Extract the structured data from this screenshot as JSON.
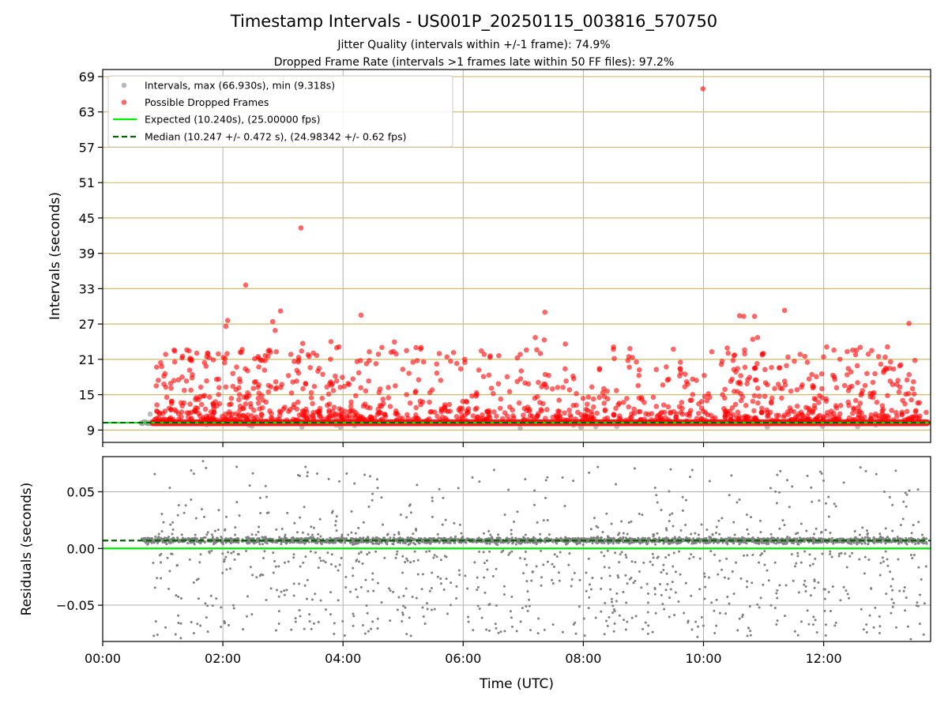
{
  "figure": {
    "title": "Timestamp Intervals - US001P_20250115_003816_570750",
    "subtitle_1": "Jitter Quality (intervals within +/-1 frame): 74.9%",
    "subtitle_2": "Dropped Frame Rate (intervals >1 frames late within 50 FF files): 97.2%"
  },
  "chart_data": [
    {
      "type": "scatter",
      "ylabel": "Intervals (seconds)",
      "xlabel": "",
      "x_unit": "hours (UTC)",
      "xlim": [
        0.0,
        13.78
      ],
      "ylim": [
        6.9,
        70.2
      ],
      "yticks": [
        9,
        15,
        21,
        27,
        33,
        39,
        45,
        51,
        57,
        63,
        69
      ],
      "ytick_labels": [
        "9",
        "15",
        "21",
        "27",
        "33",
        "39",
        "45",
        "51",
        "57",
        "63",
        "69"
      ],
      "xticks": [
        0,
        2,
        4,
        6,
        8,
        10,
        12
      ],
      "horizontal_grid": "y ticks (gold)",
      "vertical_grid": true,
      "legend_position": "top-left",
      "legend": [
        {
          "label": "Intervals, max (66.930s), min (9.318s)",
          "marker": "circle",
          "color": "#a0a0a0"
        },
        {
          "label": "Possible Dropped Frames",
          "marker": "circle",
          "color": "#ff0000"
        },
        {
          "label": "Expected (10.240s), (25.00000 fps)",
          "line": "solid",
          "color": "#00ee00"
        },
        {
          "label": "Median (10.247 +/- 0.472 s), (24.98342 +/- 0.62 fps)",
          "line": "dashed",
          "color": "#006400"
        }
      ],
      "expected_interval": 10.24,
      "median_interval": 10.247,
      "interval_max": 66.93,
      "interval_min": 9.318,
      "data_start_hour": 0.64,
      "data_end_hour": 13.72,
      "baseline_value": 10.24,
      "dropped_frames_sample": [
        {
          "x": 9.99,
          "y": 66.93
        },
        {
          "x": 3.3,
          "y": 43.3
        },
        {
          "x": 2.38,
          "y": 33.6
        },
        {
          "x": 2.96,
          "y": 29.2
        },
        {
          "x": 7.36,
          "y": 29.0
        },
        {
          "x": 11.35,
          "y": 29.3
        },
        {
          "x": 4.3,
          "y": 28.5
        },
        {
          "x": 10.6,
          "y": 28.4
        },
        {
          "x": 10.67,
          "y": 28.3
        },
        {
          "x": 10.85,
          "y": 28.3
        },
        {
          "x": 2.08,
          "y": 27.6
        },
        {
          "x": 2.05,
          "y": 26.6
        },
        {
          "x": 13.42,
          "y": 27.1
        },
        {
          "x": 2.83,
          "y": 27.4
        },
        {
          "x": 2.87,
          "y": 25.9
        },
        {
          "x": 7.2,
          "y": 24.7
        },
        {
          "x": 7.35,
          "y": 24.3
        },
        {
          "x": 10.9,
          "y": 24.7
        },
        {
          "x": 10.82,
          "y": 24.4
        },
        {
          "x": 7.7,
          "y": 23.6
        },
        {
          "x": 3.33,
          "y": 23.7
        },
        {
          "x": 4.8,
          "y": 22.2
        },
        {
          "x": 5.3,
          "y": 23.0
        },
        {
          "x": 8.5,
          "y": 22.7
        },
        {
          "x": 12.05,
          "y": 23.1
        },
        {
          "x": 12.8,
          "y": 22.5
        },
        {
          "x": 1.2,
          "y": 22.4
        },
        {
          "x": 1.75,
          "y": 22.0
        }
      ]
    },
    {
      "type": "scatter",
      "ylabel": "Residuals (seconds)",
      "xlabel": "Time (UTC)",
      "x_unit": "hours (UTC)",
      "xlim": [
        0.0,
        13.78
      ],
      "ylim": [
        -0.082,
        0.081
      ],
      "yticks": [
        0.05,
        0.0,
        -0.05
      ],
      "ytick_labels": [
        "0.05",
        "0.00",
        "−0.05"
      ],
      "xticks": [
        0,
        2,
        4,
        6,
        8,
        10,
        12
      ],
      "xtick_labels": [
        "00:00",
        "02:00",
        "04:00",
        "06:00",
        "08:00",
        "10:00",
        "12:00"
      ],
      "grid": true,
      "expected_residual": 0.0,
      "median_residual": 0.007,
      "residual_band": [
        0.003,
        0.012
      ],
      "residual_spread": [
        -0.08,
        0.08
      ],
      "point_color": "#808080",
      "sample_points": [
        {
          "x": 1.67,
          "y": 0.077
        },
        {
          "x": 1.72,
          "y": 0.071
        },
        {
          "x": 2.23,
          "y": 0.072
        },
        {
          "x": 3.28,
          "y": 0.064
        },
        {
          "x": 3.57,
          "y": 0.066
        },
        {
          "x": 4.36,
          "y": 0.065
        },
        {
          "x": 4.57,
          "y": 0.061
        },
        {
          "x": 6.27,
          "y": 0.059
        },
        {
          "x": 11.73,
          "y": 0.064
        },
        {
          "x": 13.57,
          "y": 0.052
        },
        {
          "x": 1.47,
          "y": 0.043
        },
        {
          "x": 4.37,
          "y": -0.075
        },
        {
          "x": 5.13,
          "y": -0.077
        },
        {
          "x": 9.9,
          "y": -0.078
        },
        {
          "x": 10.73,
          "y": -0.077
        },
        {
          "x": 13.45,
          "y": -0.08
        },
        {
          "x": 1.3,
          "y": -0.079
        },
        {
          "x": 0.85,
          "y": -0.077
        }
      ]
    }
  ]
}
